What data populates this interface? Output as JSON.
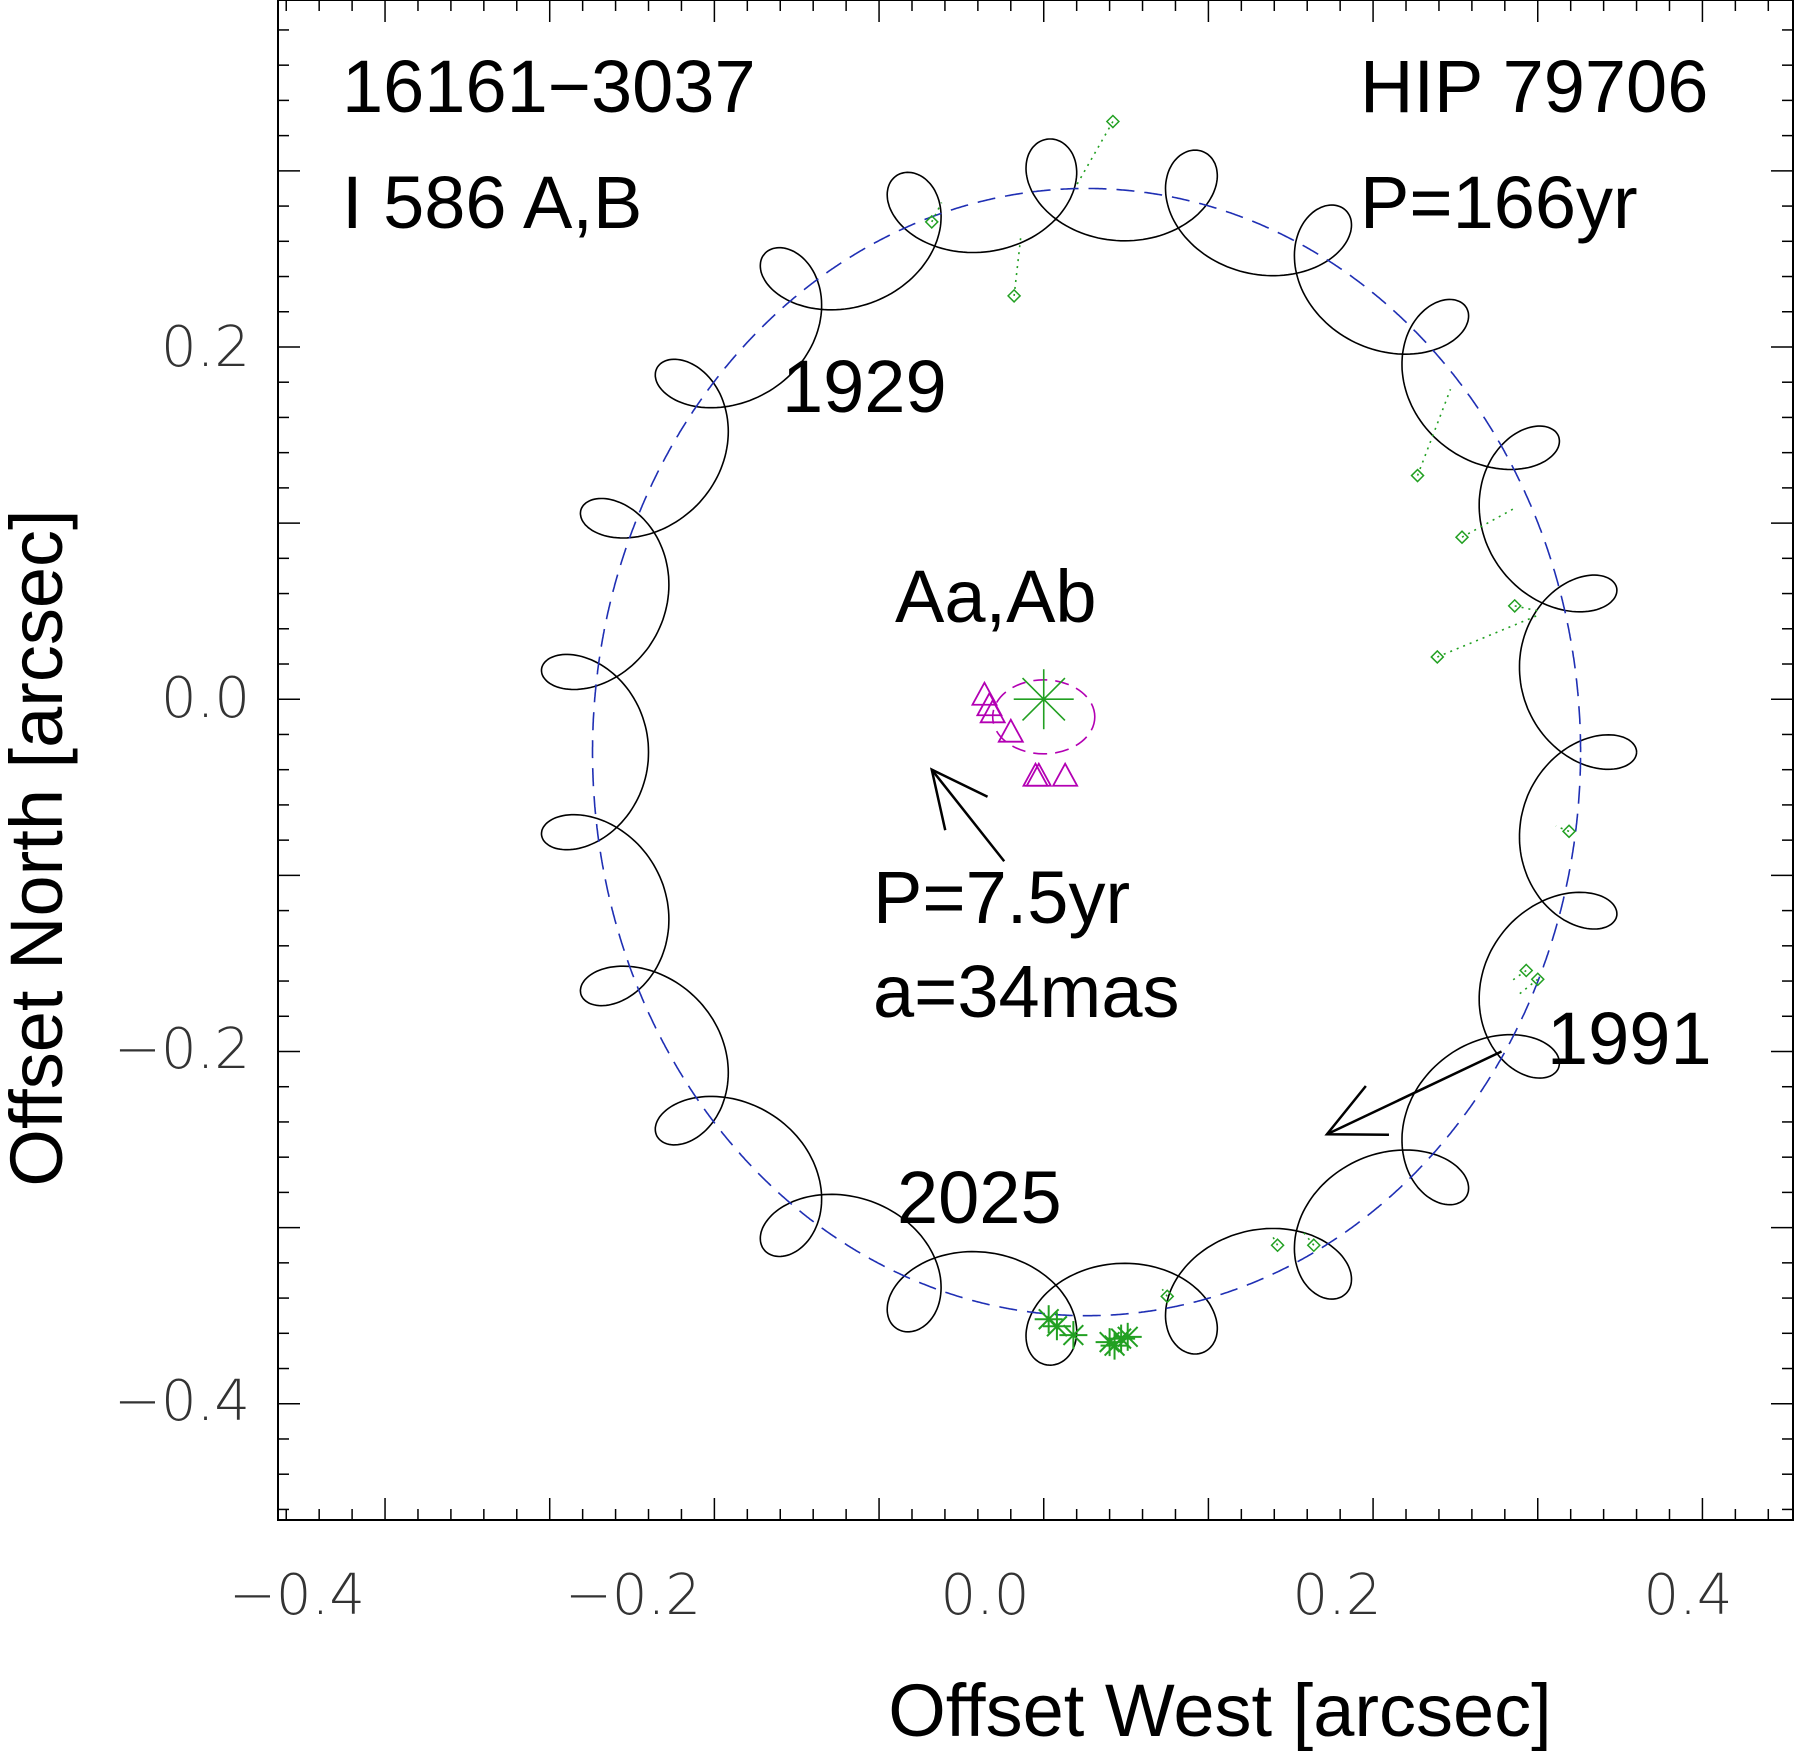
{
  "chart_data": {
    "type": "scatter",
    "xlabel": "Offset West [arcsec]",
    "ylabel": "Offset North [arcsec]",
    "xlim": [
      -0.465,
      0.455
    ],
    "ylim": [
      -0.466,
      0.397
    ],
    "x_ticks": [
      -0.4,
      -0.2,
      0.0,
      0.2,
      0.4
    ],
    "x_tick_labels": [
      "−0.4",
      "−0.2",
      "0.0",
      "0.2",
      "0.4"
    ],
    "y_ticks": [
      -0.4,
      -0.2,
      0.0,
      0.2
    ],
    "y_tick_labels": [
      "−0.4",
      "−0.2",
      "0.0",
      "0.2"
    ],
    "grid": false,
    "annotations": {
      "wds": "16161−3037",
      "discoverer": "I 586 A,B",
      "hip": "HIP 79706",
      "outer_period": "P=166yr",
      "inner_label": "Aa,Ab",
      "inner_period": "P=7.5yr",
      "inner_axis": "a=34mas",
      "epoch_1929": "1929",
      "epoch_1991": "1991",
      "epoch_2025": "2025"
    },
    "outer_orbit": {
      "center": [
        0.026,
        -0.03
      ],
      "semi_x": 0.3,
      "semi_y": 0.32,
      "wobble_amplitude": 0.034,
      "wobble_count": 22,
      "colors": {
        "orbit": "#000000",
        "mean_orbit": "#1f2fb4"
      }
    },
    "inner_orbit": {
      "center": [
        0.0,
        -0.01
      ],
      "semi_x": 0.031,
      "semi_y": 0.021,
      "color": "#b300b3"
    },
    "primary": {
      "x": 0.0,
      "y": 0.0,
      "color": "#22a022"
    },
    "series": [
      {
        "marker": "diamond",
        "color": "#22a022",
        "points": [
          {
            "x": 0.042,
            "y": 0.328,
            "fx": 0.02,
            "fy": 0.292
          },
          {
            "x": -0.068,
            "y": 0.271,
            "fx": -0.062,
            "fy": 0.282
          },
          {
            "x": -0.018,
            "y": 0.229,
            "fx": -0.014,
            "fy": 0.262
          },
          {
            "x": 0.227,
            "y": 0.127,
            "fx": 0.247,
            "fy": 0.176
          },
          {
            "x": 0.254,
            "y": 0.092,
            "fx": 0.287,
            "fy": 0.109
          },
          {
            "x": 0.286,
            "y": 0.053,
            "fx": 0.301,
            "fy": 0.05
          },
          {
            "x": 0.239,
            "y": 0.024,
            "fx": 0.301,
            "fy": 0.048
          },
          {
            "x": 0.319,
            "y": -0.075,
            "fx": 0.311,
            "fy": -0.072
          },
          {
            "x": 0.293,
            "y": -0.154,
            "fx": 0.284,
            "fy": -0.16
          },
          {
            "x": 0.3,
            "y": -0.159,
            "fx": 0.288,
            "fy": -0.168
          },
          {
            "x": 0.142,
            "y": -0.31,
            "fx": 0.139,
            "fy": -0.305
          },
          {
            "x": 0.164,
            "y": -0.31,
            "fx": 0.158,
            "fy": -0.303
          },
          {
            "x": 0.075,
            "y": -0.339,
            "fx": 0.072,
            "fy": -0.335
          }
        ]
      },
      {
        "marker": "asterisk",
        "color": "#22a022",
        "points": [
          {
            "x": 0.003,
            "y": -0.352
          },
          {
            "x": 0.008,
            "y": -0.356
          },
          {
            "x": 0.018,
            "y": -0.361
          },
          {
            "x": 0.04,
            "y": -0.365
          },
          {
            "x": 0.043,
            "y": -0.367
          },
          {
            "x": 0.047,
            "y": -0.363
          },
          {
            "x": 0.051,
            "y": -0.362
          }
        ]
      },
      {
        "marker": "triangle",
        "color": "#b300b3",
        "points": [
          {
            "x": -0.036,
            "y": 0.002
          },
          {
            "x": -0.033,
            "y": -0.004
          },
          {
            "x": -0.031,
            "y": -0.008
          },
          {
            "x": -0.02,
            "y": -0.019
          },
          {
            "x": -0.005,
            "y": -0.044
          },
          {
            "x": -0.003,
            "y": -0.044
          },
          {
            "x": 0.013,
            "y": -0.044
          }
        ]
      }
    ],
    "arrows": [
      {
        "from": [
          -0.024,
          -0.092
        ],
        "to": [
          -0.068,
          -0.04
        ]
      },
      {
        "from": [
          0.278,
          -0.2
        ],
        "to": [
          0.172,
          -0.247
        ]
      }
    ]
  }
}
